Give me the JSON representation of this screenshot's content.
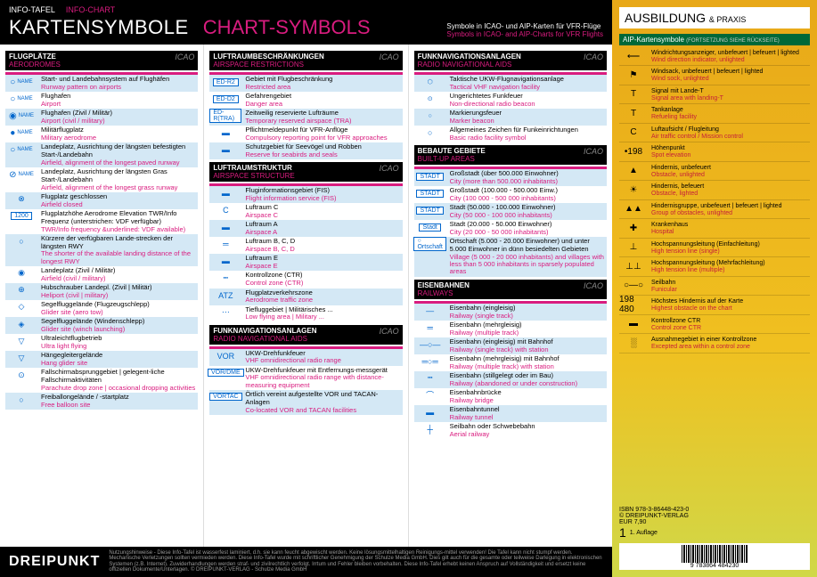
{
  "header": {
    "top_de": "INFO-TAFEL",
    "top_en": "INFO-CHART",
    "title_de": "KARTENSYMBOLE",
    "title_en": "CHART-SYMBOLS",
    "sub_de": "Symbole in ICAO- und AIP-Karten für VFR-Flüge",
    "sub_en": "Symbols in ICAO- and AIP-Charts for VFR Flights"
  },
  "sections": {
    "aerodromes": {
      "de": "FLUGPLÄTZE",
      "en": "AERODROMES",
      "icao": "ICAO"
    },
    "airspace_res": {
      "de": "LUFTRAUMBESCHRÄNKUNGEN",
      "en": "AIRSPACE RESTRICTIONS",
      "icao": "ICAO"
    },
    "airspace_str": {
      "de": "LUFTRAUMSTRUKTUR",
      "en": "AIRSPACE STRUCTURE",
      "icao": "ICAO"
    },
    "radio1": {
      "de": "FUNKNAVIGATIONSANLAGEN",
      "en": "RADIO NAVIGATIONAL AIDS",
      "icao": "ICAO"
    },
    "radio2": {
      "de": "FUNKNAVIGATIONSANLAGEN",
      "en": "RADIO NAVIGATIONAL AIDS",
      "icao": "ICAO"
    },
    "builtup": {
      "de": "BEBAUTE GEBIETE",
      "en": "BUILT-UP AREAS",
      "icao": "ICAO"
    },
    "railways": {
      "de": "EISENBAHNEN",
      "en": "RAILWAYS",
      "icao": "ICAO"
    }
  },
  "col1": [
    {
      "sym": "○",
      "de": "Start- und Landebahnsystem auf Flughäfen",
      "en": "Runway pattern on airports",
      "name": "NAME",
      "blue": true
    },
    {
      "sym": "○",
      "de": "Flughafen",
      "en": "Airport",
      "name": "NAME"
    },
    {
      "sym": "◉",
      "de": "Flughafen (Zivil / Militär)",
      "en": "Airport (civil / military)",
      "name": "NAME",
      "blue": true
    },
    {
      "sym": "●",
      "de": "Militärflugplatz",
      "en": "Military aerodrome",
      "name": "NAME"
    },
    {
      "sym": "○",
      "de": "Landeplatz, Ausrichtung der längsten befestigten Start-/Landebahn",
      "en": "Airfield, alignment of the longest paved runway",
      "name": "NAME",
      "blue": true
    },
    {
      "sym": "⊘",
      "de": "Landeplatz, Ausrichtung der längsten Gras Start-/Landebahn",
      "en": "Airfield, alignment of the longest grass runway",
      "name": "NAME"
    },
    {
      "sym": "⊗",
      "de": "Flugplatz geschlossen",
      "en": "Airfield closed",
      "blue": true
    },
    {
      "sym": "1200",
      "de": "Flugplatzhöhe    Aerodrome Elevation\nTWR/Info Frequenz (unterstrichen: VDF verfügbar)",
      "en": "TWR/Info frequency &underlined: VDF available)",
      "label2": "123.000  650m"
    },
    {
      "sym": "○",
      "de": "Kürzere der verfügbaren Lande-strecken der längsten RWY",
      "en": "The shorter of the available landing distance of the longest RWY",
      "blue": true
    },
    {
      "sym": "◉",
      "de": "Landeplatz (Zivil / Militär)",
      "en": "Airfield (civil / military)"
    },
    {
      "sym": "⊕",
      "de": "Hubschrauber Landepl. (Zivil | Militär)",
      "en": "Heliport (civil | military)",
      "blue": true
    },
    {
      "sym": "◇",
      "de": "Segelfluggelände (Flugzeugschlepp)",
      "en": "Glider site (aero tow)"
    },
    {
      "sym": "◈",
      "de": "Segelfluggelände (Windenschlepp)",
      "en": "Glider site (winch launching)",
      "blue": true
    },
    {
      "sym": "▽",
      "de": "Ultraleichtflugbetrieb",
      "en": "Ultra light flying"
    },
    {
      "sym": "▽",
      "de": "Hängegleitergelände",
      "en": "Hang glider site",
      "blue": true
    },
    {
      "sym": "⊙",
      "de": "Fallschirmabsprunggebiet | gelegent-liche Fallschirmaktivitäten",
      "en": "Parachute drop zone | occasional dropping activities"
    },
    {
      "sym": "○",
      "de": "Freiballongelände / -startplatz",
      "en": "Free balloon site",
      "blue": true
    }
  ],
  "col2a": [
    {
      "sym": "ED-R2",
      "de": "Gebiet mit Flugbeschränkung",
      "en": "Restricted area",
      "blue": true
    },
    {
      "sym": "ED-D2",
      "de": "Gefahrengebiet",
      "en": "Danger area"
    },
    {
      "sym": "ED-R(TRA)",
      "de": "Zeitweilig reservierte Lufträume",
      "en": "Temporary reserved airspace (TRA)",
      "blue": true
    },
    {
      "sym": "▬",
      "de": "Pflichtmeldepunkt für VFR-Anflüge",
      "en": "Compulsory reporting point for VFR approaches"
    },
    {
      "sym": "▬",
      "de": "Schutzgebiet für Seevögel und Robben",
      "en": "Reserve for seabirds and seals",
      "blue": true
    }
  ],
  "col2b": [
    {
      "sym": "▬",
      "de": "Fluginformationsgebiet (FIS)",
      "en": "Flight information service (FIS)",
      "blue": true
    },
    {
      "sym": "C",
      "de": "Luftraum C",
      "en": "Airspace C"
    },
    {
      "sym": "▬",
      "de": "Luftraum A",
      "en": "Airspace A",
      "blue": true
    },
    {
      "sym": "═",
      "de": "Luftraum B, C, D",
      "en": "Airspace B, C, D"
    },
    {
      "sym": "▬",
      "de": "Luftraum E",
      "en": "Airspace E",
      "blue": true
    },
    {
      "sym": "┅",
      "de": "Kontrollzone (CTR)",
      "en": "Control zone (CTR)"
    },
    {
      "sym": "ATZ",
      "de": "Flugplatzverkehrszone",
      "en": "Aerodrome traffic zone",
      "blue": true
    },
    {
      "sym": "⋯",
      "de": "Tiefluggebiet | Militärisches ...",
      "en": "Low flying area | Military ..."
    }
  ],
  "col2c": [
    {
      "sym": "VOR",
      "de": "UKW-Drehfunkfeuer",
      "en": "VHF omnidirectional radio range",
      "blue": true
    },
    {
      "sym": "VOR/DME",
      "de": "UKW-Drehfunkfeuer mit Entfernungs-messgerät",
      "en": "VHF omnidirectional radio range with distance-measuring equipment"
    },
    {
      "sym": "VORTAC",
      "de": "Örtlich vereint aufgestellte VOR und TACAN-Anlagen",
      "en": "Co-located VOR and TACAN facilities",
      "blue": true
    }
  ],
  "col3a": [
    {
      "sym": "⬡",
      "de": "Taktische UKW-Flugnavigationsanlage",
      "en": "Tactical VHF navigation facility",
      "label": "TACAN",
      "blue": true
    },
    {
      "sym": "⊙",
      "de": "Ungerichtetes Funkfeuer",
      "en": "Non-directional radio beacon",
      "label": "NDB"
    },
    {
      "sym": "○",
      "de": "Markierungsfeuer",
      "en": "Marker beacon",
      "label": "MKR",
      "blue": true
    },
    {
      "sym": "○",
      "de": "Allgemeines Zeichen für Funkeinrichtungen",
      "en": "Basic radio facility symbol"
    }
  ],
  "col3b": [
    {
      "sym": "STADT",
      "de": "Großstadt (über 500.000 Einwohner)",
      "en": "City (more than 500.000 inhabitants)",
      "blue": true
    },
    {
      "sym": "STADT",
      "de": "Großstadt (100.000 - 500.000 Einw.)",
      "en": "City (100 000 - 500 000 inhabitants)"
    },
    {
      "sym": "STADT",
      "de": "Stadt (50.000 - 100.000 Einwohner)",
      "en": "City (50 000 - 100 000 inhabitants)",
      "blue": true
    },
    {
      "sym": "Stadt",
      "de": "Stadt (20.000 - 50.000 Einwohner)",
      "en": "City (20 000 - 50 000 inhabitants)"
    },
    {
      "sym": "○ Ortschaft",
      "de": "Ortschaft (5.000 - 20.000 Einwohner) und unter 5.000 Einwohner in dünn besiedelten Gebieten",
      "en": "Village (5 000 - 20 000 inhabitants) and villages with less than 5 000 inhabitants in sparsely populated areas",
      "blue": true
    }
  ],
  "col3c": [
    {
      "sym": "—",
      "de": "Eisenbahn (eingleisig)",
      "en": "Railway (single track)",
      "blue": true
    },
    {
      "sym": "═",
      "de": "Eisenbahn (mehrgleisig)",
      "en": "Railway (multiple track)"
    },
    {
      "sym": "—○—",
      "de": "Eisenbahn (eingleisig) mit Bahnhof",
      "en": "Railway (single track) with station",
      "blue": true
    },
    {
      "sym": "═○═",
      "de": "Eisenbahn (mehrgleisig) mit Bahnhof",
      "en": "Railway (multiple track) with station"
    },
    {
      "sym": "┅",
      "de": "Eisenbahn (stillgelegt oder im Bau)",
      "en": "Railway (abandoned or under construction)",
      "blue": true
    },
    {
      "sym": "⌒",
      "de": "Eisenbahnbrücke",
      "en": "Railway bridge"
    },
    {
      "sym": "▬",
      "de": "Eisenbahntunnel",
      "en": "Railway tunnel",
      "blue": true
    },
    {
      "sym": "┼",
      "de": "Seilbahn oder Schwebebahn",
      "en": "Aerial railway"
    }
  ],
  "side": {
    "title": "AUSBILDUNG",
    "sub": "& PRAXIS",
    "sec": "AIP-Kartensymbole",
    "sec_note": "(FORTSETZUNG SIEHE RÜCKSEITE)",
    "rows": [
      {
        "sym": "⟵",
        "de": "Windrichtungsanzeiger, unbefeuert",
        "en": "Wind direction indicator, unlighted",
        "extra": "| befeuert | lighted"
      },
      {
        "sym": "⚑",
        "de": "Windsack, unbefeuert",
        "en": "Wind sock, unlighted",
        "extra": "| befeuert | lighted"
      },
      {
        "sym": "T",
        "de": "Signal mit Lande-T",
        "en": "Signal area with landing-T"
      },
      {
        "sym": "T",
        "de": "Tankanlage",
        "en": "Refueling facility"
      },
      {
        "sym": "C",
        "de": "Luftaufsicht / Flugleitung",
        "en": "Air traffic control / Mission control"
      },
      {
        "sym": "•198",
        "de": "Höhenpunkt",
        "en": "Spot elevation"
      },
      {
        "sym": "▲",
        "de": "Hindernis, unbefeuert",
        "en": "Obstacle, unlighted"
      },
      {
        "sym": "☀",
        "de": "Hindernis, befeuert",
        "en": "Obstacle, lighted"
      },
      {
        "sym": "▲▲",
        "de": "Hindernisgruppe, unbefeuert",
        "en": "Group of obstacles, unlighted",
        "extra": "| befeuert | lighted"
      },
      {
        "sym": "✚",
        "de": "Krankenhaus",
        "en": "Hospital"
      },
      {
        "sym": "⊥",
        "de": "Hochspannungsleitung (Einfachleitung)",
        "en": "High tension line (single)"
      },
      {
        "sym": "⊥⊥",
        "de": "Hochspannungsleitung (Mehrfachleitung)",
        "en": "High tension line (multiple)"
      },
      {
        "sym": "○—○",
        "de": "Seilbahn",
        "en": "Funicular"
      },
      {
        "sym": "198 480",
        "de": "Höchstes Hindernis auf der Karte",
        "en": "Highest obstacle on the chart"
      },
      {
        "sym": "▬",
        "de": "Kontrollzone CTR",
        "en": "Control zone CTR"
      },
      {
        "sym": "░",
        "de": "Ausnahmegebiet in einer Kontrollzone",
        "en": "Excepted area within a control zone"
      }
    ],
    "isbn_label": "ISBN",
    "isbn": "978-3-86448-423-0",
    "publisher": "© DREIPUNKT-VERLAG",
    "price": "EUR 7,90",
    "edition": "1. Auflage",
    "barcode_num": "9 783864 484230"
  },
  "footer": {
    "logo": "DREIPUNKT",
    "text": "Nutzungshinweise - Diese Info-Tafel ist wasserfest laminiert, d.h. sie kann feucht abgewischt werden. Keine lösungsmittelhaltigen Reinigungs-mittel verwenden! Die Tafel kann nicht stumpf werden. Mechanische Verletzungen sollten vermieden werden. Diese Info-Tafel wurde mit schriftlicher Genehmigung der Schulze Media GmbH. Dies gilt auch für die gesamte oder teilweise Darlegung in elektronischen Systemen (z.B. Internet). Zuwiderhandlungen werden straf- und zivilrechtlich verfolgt. Irrtum und Fehler bleiben vorbehalten. Diese Info-Tafel erhebt keinen Anspruch auf Vollständigkeit und ersetzt keine offiziellen Dokumente/Unterlagen. © DREIPUNKT-VERLAG - Schulze Media GmbH"
  }
}
